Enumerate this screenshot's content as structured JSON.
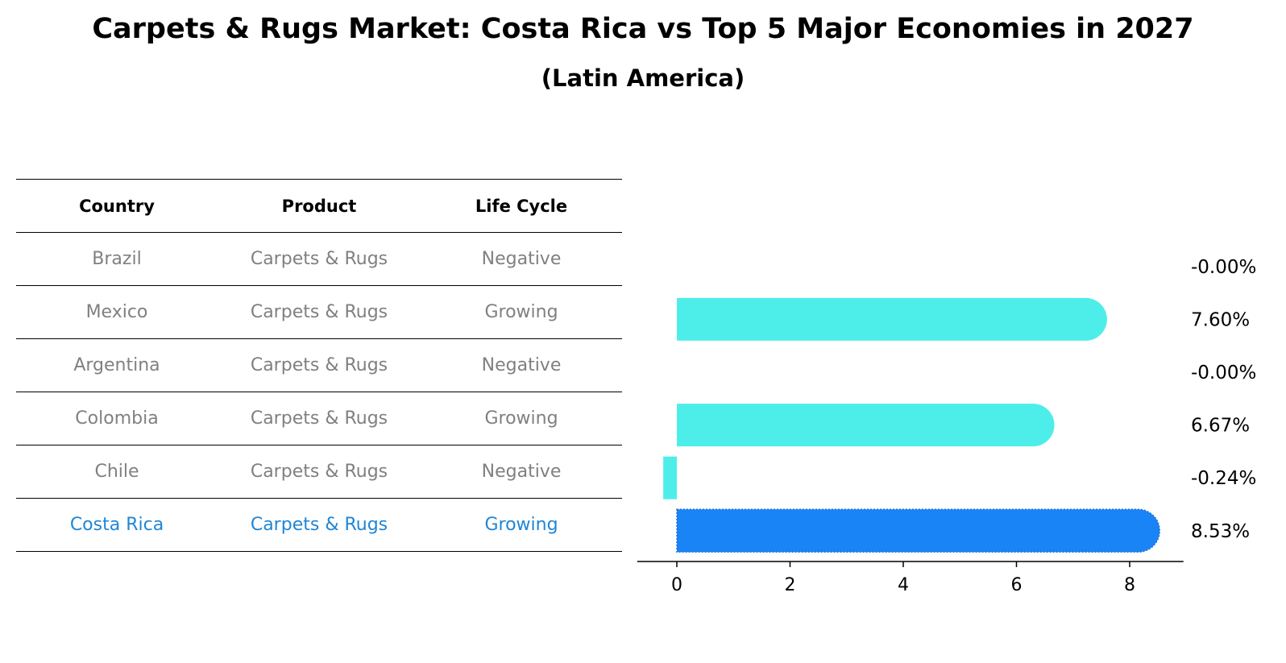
{
  "title": "Carpets & Rugs Market: Costa Rica vs Top 5 Major Economies in 2027",
  "subtitle": "(Latin America)",
  "table": {
    "headers": [
      "Country",
      "Product",
      "Life Cycle"
    ],
    "rows": [
      [
        "Brazil",
        "Carpets & Rugs",
        "Negative"
      ],
      [
        "Mexico",
        "Carpets & Rugs",
        "Growing"
      ],
      [
        "Argentina",
        "Carpets & Rugs",
        "Negative"
      ],
      [
        "Colombia",
        "Carpets & Rugs",
        "Growing"
      ],
      [
        "Chile",
        "Carpets & Rugs",
        "Negative"
      ],
      [
        "Costa Rica",
        "Carpets & Rugs",
        "Growing"
      ]
    ]
  },
  "colors": {
    "bar": "#4deeea",
    "highlight": "#1984f5",
    "highlight_text": "#1f86d6",
    "muted_text": "#808080"
  },
  "chart_data": {
    "type": "bar",
    "orientation": "horizontal",
    "categories": [
      "Brazil",
      "Mexico",
      "Argentina",
      "Colombia",
      "Chile",
      "Costa Rica"
    ],
    "values": [
      -0.0,
      7.6,
      -0.0,
      6.67,
      -0.24,
      8.53
    ],
    "value_labels": [
      "-0.00%",
      "7.60%",
      "-0.00%",
      "6.67%",
      "-0.24%",
      "8.53%"
    ],
    "highlight": "Costa Rica",
    "xlim": [
      -0.7,
      8.95
    ],
    "xticks": [
      0,
      2,
      4,
      6,
      8
    ],
    "xlabel": "",
    "ylabel": ""
  }
}
